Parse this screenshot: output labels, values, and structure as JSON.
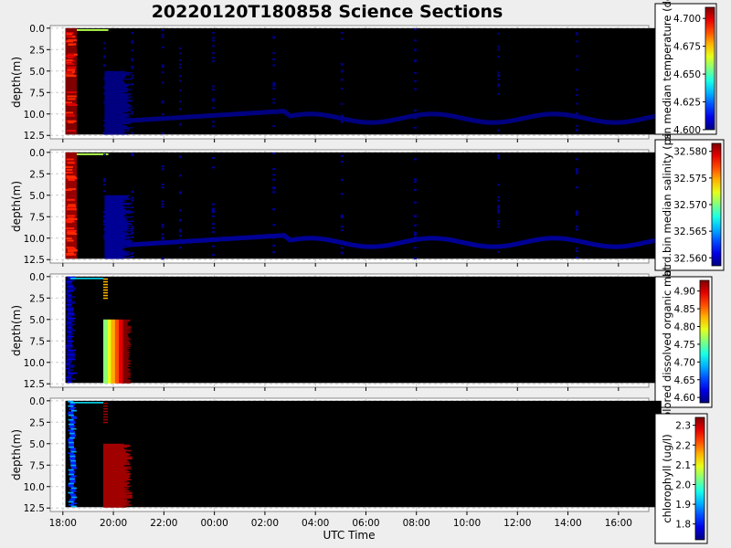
{
  "title": "20220120T180858 Science Sections",
  "xlabel": "UTC Time",
  "chart_data": {
    "type": "heatmap",
    "x_ticks": [
      "18:00",
      "20:00",
      "22:00",
      "00:00",
      "02:00",
      "04:00",
      "06:00",
      "08:00",
      "10:00",
      "12:00",
      "14:00",
      "16:00"
    ],
    "x_range_hours": [
      17.5,
      41.2
    ],
    "data_time_range_hours": [
      18.1,
      41.7
    ],
    "grid": true,
    "colormap": "jet",
    "panels": [
      {
        "ylabel": "depth(m)",
        "ylim": [
          12.9,
          -0.3
        ],
        "y_ticks": [
          "0.0",
          "2.5",
          "5.0",
          "7.5",
          "10.0",
          "12.5"
        ],
        "colorbar": {
          "label": "bin median temperature (de",
          "range": [
            4.6,
            4.71
          ],
          "ticks": [
            "4.600",
            "4.625",
            "4.650",
            "4.675",
            "4.700"
          ]
        },
        "description_values": {
          "profile1_range": [
            4.7,
            4.71
          ],
          "other_profiles": 4.6,
          "bottom_track_depth_m": [
            9.5,
            11.5
          ]
        }
      },
      {
        "ylabel": "depth(m)",
        "ylim": [
          12.9,
          -0.3
        ],
        "y_ticks": [
          "0.0",
          "2.5",
          "5.0",
          "7.5",
          "10.0",
          "12.5"
        ],
        "colorbar": {
          "label": "bird.bin median salinity (ps",
          "range": [
            32.5585,
            32.5815
          ],
          "ticks": [
            "32.560",
            "32.565",
            "32.570",
            "32.575",
            "32.580"
          ]
        },
        "description_values": {
          "profile1_range": [
            32.578,
            32.581
          ],
          "other_profiles": 32.559,
          "bottom_track_depth_m": [
            9.5,
            11.5
          ]
        }
      },
      {
        "ylabel": "depth(m)",
        "ylim": [
          12.9,
          -0.3
        ],
        "y_ticks": [
          "0.0",
          "2.5",
          "5.0",
          "7.5",
          "10.0",
          "12.5"
        ],
        "colorbar": {
          "label": "olored dissolved organic mat",
          "range": [
            4.585,
            4.93
          ],
          "ticks": [
            "4.60",
            "4.65",
            "4.70",
            "4.75",
            "4.80",
            "4.85",
            "4.90"
          ]
        },
        "description_values": {
          "profile1_range": [
            4.59,
            4.62
          ],
          "profile2_range": [
            4.76,
            4.93
          ]
        }
      },
      {
        "ylabel": "depth(m)",
        "ylim": [
          12.9,
          -0.3
        ],
        "y_ticks": [
          "0.0",
          "2.5",
          "5.0",
          "7.5",
          "10.0",
          "12.5"
        ],
        "colorbar": {
          "label": "chlorophyll (ug/l)",
          "range": [
            1.72,
            2.34
          ],
          "ticks": [
            "1.8",
            "1.9",
            "2.0",
            "2.1",
            "2.2",
            "2.3"
          ]
        },
        "description_values": {
          "profile1_range": [
            1.82,
            1.9
          ],
          "profile2_value": 2.32
        }
      }
    ]
  }
}
